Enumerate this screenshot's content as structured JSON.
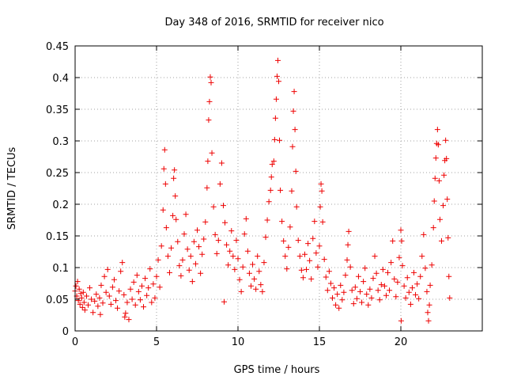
{
  "chart_data": {
    "type": "scatter",
    "title": "Day 348 of 2016, SRMTID for receiver nico",
    "xlabel": "GPS time / hours",
    "ylabel": "SRMTID / TECUs",
    "xlim": [
      0,
      25
    ],
    "ylim": [
      0,
      0.45
    ],
    "xticks": [
      0,
      5,
      10,
      15,
      20
    ],
    "yticks": [
      0,
      0.05,
      0.1,
      0.15,
      0.2,
      0.25,
      0.3,
      0.35,
      0.4,
      0.45
    ],
    "x_tick_labels": [
      "0",
      "5",
      "10",
      "15",
      "20"
    ],
    "y_tick_labels": [
      "0",
      "0.05",
      "0.1",
      "0.15",
      "0.2",
      "0.25",
      "0.3",
      "0.35",
      "0.4",
      "0.45"
    ],
    "grid": true,
    "marker": "+",
    "marker_color": "#ee0000",
    "series": [
      {
        "points": [
          [
            0.0,
            0.063
          ],
          [
            0.05,
            0.071
          ],
          [
            0.1,
            0.055
          ],
          [
            0.15,
            0.078
          ],
          [
            0.2,
            0.048
          ],
          [
            0.25,
            0.066
          ],
          [
            0.3,
            0.042
          ],
          [
            0.35,
            0.059
          ],
          [
            0.4,
            0.052
          ],
          [
            0.45,
            0.037
          ],
          [
            0.5,
            0.061
          ],
          [
            0.55,
            0.045
          ],
          [
            0.6,
            0.033
          ],
          [
            0.7,
            0.055
          ],
          [
            0.8,
            0.041
          ],
          [
            0.9,
            0.068
          ],
          [
            1.0,
            0.05
          ],
          [
            1.1,
            0.029
          ],
          [
            1.2,
            0.047
          ],
          [
            1.3,
            0.058
          ],
          [
            1.4,
            0.039
          ],
          [
            1.5,
            0.052
          ],
          [
            1.6,
            0.072
          ],
          [
            1.7,
            0.044
          ],
          [
            1.8,
            0.086
          ],
          [
            1.9,
            0.061
          ],
          [
            2.0,
            0.097
          ],
          [
            2.1,
            0.055
          ],
          [
            2.2,
            0.042
          ],
          [
            2.3,
            0.069
          ],
          [
            2.4,
            0.081
          ],
          [
            2.5,
            0.048
          ],
          [
            2.6,
            0.036
          ],
          [
            2.7,
            0.063
          ],
          [
            2.8,
            0.094
          ],
          [
            2.9,
            0.108
          ],
          [
            3.0,
            0.057
          ],
          [
            3.1,
            0.028
          ],
          [
            3.2,
            0.045
          ],
          [
            3.3,
            0.018
          ],
          [
            3.4,
            0.066
          ],
          [
            3.5,
            0.05
          ],
          [
            3.6,
            0.077
          ],
          [
            3.7,
            0.041
          ],
          [
            3.8,
            0.088
          ],
          [
            3.9,
            0.062
          ],
          [
            4.0,
            0.049
          ],
          [
            4.1,
            0.071
          ],
          [
            4.2,
            0.038
          ],
          [
            4.3,
            0.083
          ],
          [
            4.4,
            0.056
          ],
          [
            4.5,
            0.068
          ],
          [
            4.6,
            0.098
          ],
          [
            4.7,
            0.045
          ],
          [
            4.8,
            0.074
          ],
          [
            4.9,
            0.052
          ],
          [
            5.0,
            0.086
          ],
          [
            5.1,
            0.112
          ],
          [
            5.2,
            0.069
          ],
          [
            5.3,
            0.134
          ],
          [
            5.4,
            0.191
          ],
          [
            5.45,
            0.256
          ],
          [
            5.5,
            0.286
          ],
          [
            5.55,
            0.232
          ],
          [
            5.6,
            0.163
          ],
          [
            5.7,
            0.118
          ],
          [
            5.8,
            0.092
          ],
          [
            5.9,
            0.131
          ],
          [
            6.0,
            0.182
          ],
          [
            6.05,
            0.241
          ],
          [
            6.1,
            0.254
          ],
          [
            6.15,
            0.213
          ],
          [
            6.2,
            0.176
          ],
          [
            6.3,
            0.141
          ],
          [
            6.4,
            0.103
          ],
          [
            6.5,
            0.087
          ],
          [
            6.6,
            0.112
          ],
          [
            6.7,
            0.153
          ],
          [
            6.8,
            0.184
          ],
          [
            6.9,
            0.129
          ],
          [
            7.0,
            0.096
          ],
          [
            7.1,
            0.118
          ],
          [
            7.2,
            0.078
          ],
          [
            7.3,
            0.141
          ],
          [
            7.4,
            0.106
          ],
          [
            7.5,
            0.159
          ],
          [
            7.6,
            0.133
          ],
          [
            7.7,
            0.091
          ],
          [
            7.8,
            0.121
          ],
          [
            7.9,
            0.145
          ],
          [
            8.0,
            0.172
          ],
          [
            8.1,
            0.226
          ],
          [
            8.15,
            0.268
          ],
          [
            8.2,
            0.333
          ],
          [
            8.25,
            0.362
          ],
          [
            8.3,
            0.401
          ],
          [
            8.35,
            0.392
          ],
          [
            8.4,
            0.281
          ],
          [
            8.5,
            0.196
          ],
          [
            8.6,
            0.152
          ],
          [
            8.7,
            0.122
          ],
          [
            8.8,
            0.143
          ],
          [
            8.9,
            0.232
          ],
          [
            9.0,
            0.265
          ],
          [
            9.1,
            0.198
          ],
          [
            9.2,
            0.171
          ],
          [
            9.3,
            0.136
          ],
          [
            9.4,
            0.104
          ],
          [
            9.5,
            0.126
          ],
          [
            9.6,
            0.158
          ],
          [
            9.7,
            0.118
          ],
          [
            9.8,
            0.097
          ],
          [
            9.9,
            0.143
          ],
          [
            10.0,
            0.114
          ],
          [
            10.1,
            0.081
          ],
          [
            10.2,
            0.062
          ],
          [
            10.3,
            0.101
          ],
          [
            10.4,
            0.153
          ],
          [
            10.5,
            0.177
          ],
          [
            10.6,
            0.126
          ],
          [
            10.7,
            0.091
          ],
          [
            10.8,
            0.071
          ],
          [
            10.9,
            0.105
          ],
          [
            11.0,
            0.082
          ],
          [
            11.1,
            0.066
          ],
          [
            11.2,
            0.118
          ],
          [
            11.3,
            0.094
          ],
          [
            11.4,
            0.073
          ],
          [
            11.5,
            0.062
          ],
          [
            11.6,
            0.108
          ],
          [
            11.7,
            0.148
          ],
          [
            11.8,
            0.175
          ],
          [
            11.9,
            0.204
          ],
          [
            12.0,
            0.222
          ],
          [
            12.05,
            0.243
          ],
          [
            12.1,
            0.263
          ],
          [
            12.2,
            0.268
          ],
          [
            12.25,
            0.302
          ],
          [
            12.3,
            0.336
          ],
          [
            12.35,
            0.366
          ],
          [
            12.4,
            0.402
          ],
          [
            12.45,
            0.427
          ],
          [
            12.5,
            0.394
          ],
          [
            12.55,
            0.301
          ],
          [
            12.6,
            0.222
          ],
          [
            12.7,
            0.173
          ],
          [
            12.8,
            0.142
          ],
          [
            12.9,
            0.118
          ],
          [
            13.0,
            0.098
          ],
          [
            13.1,
            0.132
          ],
          [
            13.2,
            0.164
          ],
          [
            13.3,
            0.221
          ],
          [
            13.35,
            0.291
          ],
          [
            13.4,
            0.347
          ],
          [
            13.45,
            0.378
          ],
          [
            13.5,
            0.318
          ],
          [
            13.55,
            0.252
          ],
          [
            13.6,
            0.196
          ],
          [
            13.7,
            0.143
          ],
          [
            13.8,
            0.118
          ],
          [
            13.9,
            0.096
          ],
          [
            14.0,
            0.084
          ],
          [
            14.1,
            0.121
          ],
          [
            14.2,
            0.097
          ],
          [
            14.3,
            0.138
          ],
          [
            14.4,
            0.111
          ],
          [
            14.5,
            0.082
          ],
          [
            14.6,
            0.146
          ],
          [
            14.7,
            0.173
          ],
          [
            14.8,
            0.123
          ],
          [
            14.9,
            0.101
          ],
          [
            15.0,
            0.134
          ],
          [
            15.05,
            0.196
          ],
          [
            15.1,
            0.232
          ],
          [
            15.15,
            0.221
          ],
          [
            15.2,
            0.172
          ],
          [
            15.3,
            0.113
          ],
          [
            15.4,
            0.085
          ],
          [
            15.5,
            0.064
          ],
          [
            15.6,
            0.094
          ],
          [
            15.7,
            0.075
          ],
          [
            15.8,
            0.052
          ],
          [
            15.9,
            0.068
          ],
          [
            16.0,
            0.041
          ],
          [
            16.1,
            0.058
          ],
          [
            16.2,
            0.036
          ],
          [
            16.3,
            0.072
          ],
          [
            16.4,
            0.049
          ],
          [
            16.5,
            0.061
          ],
          [
            16.6,
            0.088
          ],
          [
            16.7,
            0.112
          ],
          [
            16.75,
            0.136
          ],
          [
            16.8,
            0.157
          ],
          [
            16.9,
            0.101
          ],
          [
            17.0,
            0.064
          ],
          [
            17.1,
            0.043
          ],
          [
            17.2,
            0.069
          ],
          [
            17.3,
            0.051
          ],
          [
            17.4,
            0.086
          ],
          [
            17.5,
            0.062
          ],
          [
            17.6,
            0.045
          ],
          [
            17.7,
            0.078
          ],
          [
            17.8,
            0.099
          ],
          [
            17.9,
            0.058
          ],
          [
            18.0,
            0.041
          ],
          [
            18.1,
            0.066
          ],
          [
            18.2,
            0.052
          ],
          [
            18.3,
            0.083
          ],
          [
            18.4,
            0.118
          ],
          [
            18.5,
            0.091
          ],
          [
            18.6,
            0.064
          ],
          [
            18.7,
            0.049
          ],
          [
            18.8,
            0.073
          ],
          [
            18.9,
            0.097
          ],
          [
            19.0,
            0.071
          ],
          [
            19.1,
            0.056
          ],
          [
            19.2,
            0.092
          ],
          [
            19.3,
            0.064
          ],
          [
            19.4,
            0.108
          ],
          [
            19.5,
            0.142
          ],
          [
            19.6,
            0.082
          ],
          [
            19.7,
            0.054
          ],
          [
            19.8,
            0.077
          ],
          [
            19.9,
            0.116
          ],
          [
            20.0,
            0.159
          ],
          [
            20.05,
            0.142
          ],
          [
            20.1,
            0.103
          ],
          [
            20.2,
            0.071
          ],
          [
            20.3,
            0.052
          ],
          [
            20.4,
            0.084
          ],
          [
            20.5,
            0.061
          ],
          [
            20.6,
            0.042
          ],
          [
            20.7,
            0.068
          ],
          [
            20.8,
            0.092
          ],
          [
            20.9,
            0.057
          ],
          [
            21.0,
            0.074
          ],
          [
            21.1,
            0.051
          ],
          [
            21.2,
            0.086
          ],
          [
            21.3,
            0.118
          ],
          [
            21.4,
            0.152
          ],
          [
            21.5,
            0.099
          ],
          [
            21.6,
            0.062
          ],
          [
            21.65,
            0.029
          ],
          [
            21.7,
            0.016
          ],
          [
            21.75,
            0.041
          ],
          [
            21.8,
            0.072
          ],
          [
            21.9,
            0.104
          ],
          [
            22.0,
            0.163
          ],
          [
            22.05,
            0.205
          ],
          [
            22.1,
            0.241
          ],
          [
            22.15,
            0.273
          ],
          [
            22.2,
            0.296
          ],
          [
            22.25,
            0.318
          ],
          [
            22.3,
            0.294
          ],
          [
            22.35,
            0.237
          ],
          [
            22.4,
            0.176
          ],
          [
            22.5,
            0.142
          ],
          [
            22.6,
            0.198
          ],
          [
            22.65,
            0.246
          ],
          [
            22.7,
            0.269
          ],
          [
            22.75,
            0.301
          ],
          [
            22.8,
            0.272
          ],
          [
            22.85,
            0.208
          ],
          [
            22.9,
            0.147
          ],
          [
            22.95,
            0.086
          ],
          [
            23.0,
            0.052
          ],
          [
            20.02,
            0.016
          ],
          [
            3.05,
            0.022
          ],
          [
            1.55,
            0.026
          ],
          [
            9.15,
            0.046
          ]
        ]
      }
    ]
  }
}
